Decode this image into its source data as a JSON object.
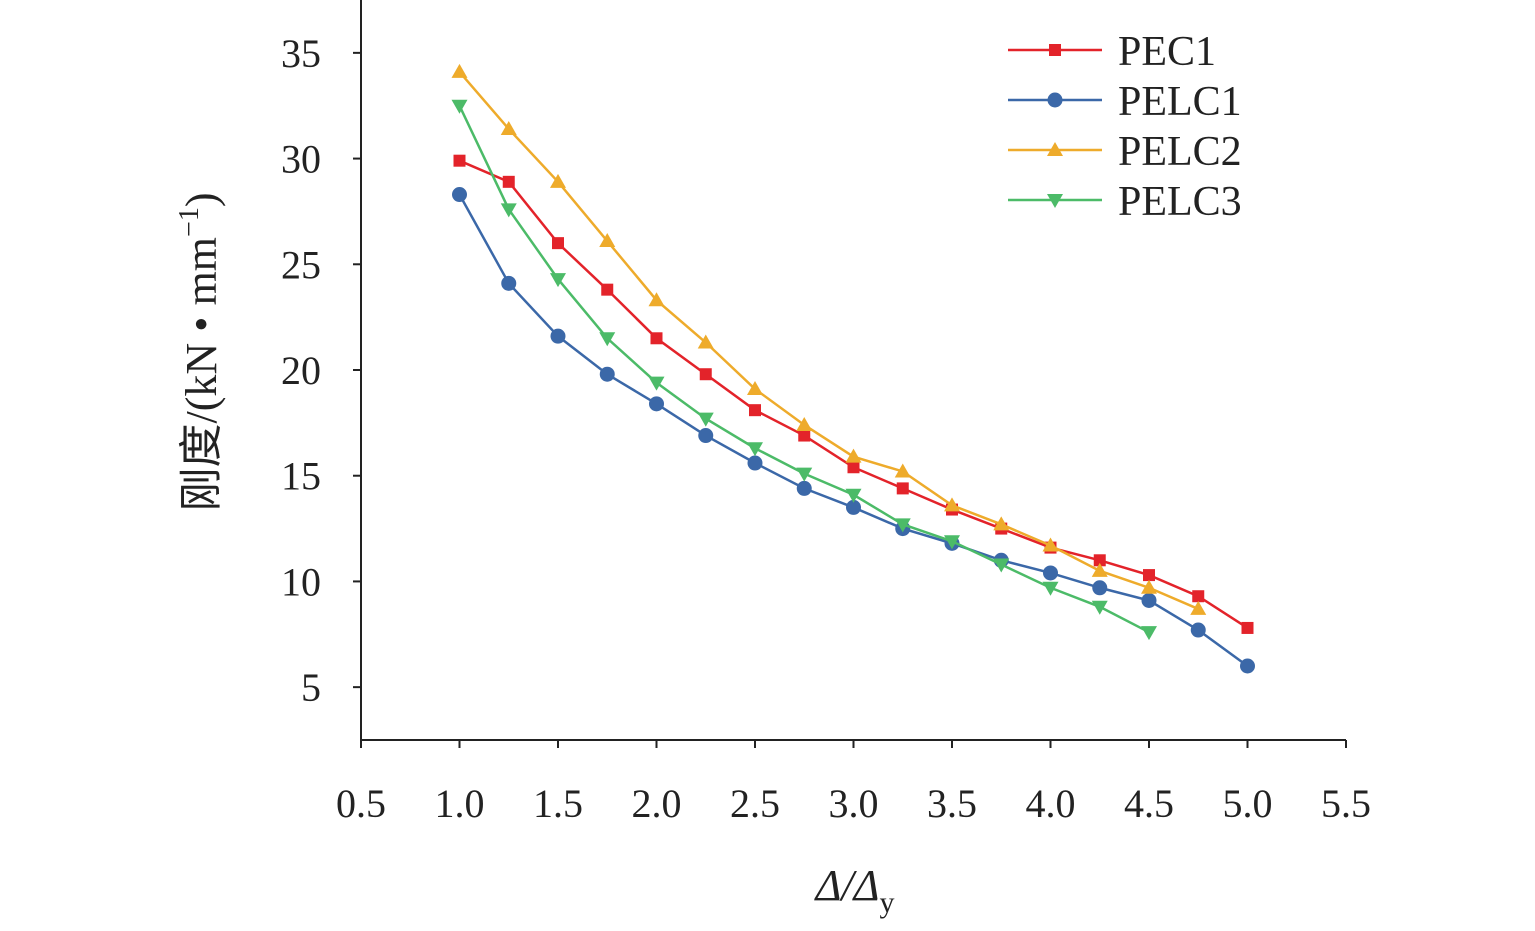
{
  "chart_data": {
    "type": "line",
    "title": "",
    "xlabel": {
      "main": "Δ/Δ",
      "sub": "y"
    },
    "ylabel": {
      "main": "刚度/(kN • mm",
      "sup": "−1",
      "end": ")"
    },
    "xlim": [
      0.5,
      5.5
    ],
    "ylim": [
      2.5,
      37.5
    ],
    "xticks": [
      "0.5",
      "1.0",
      "1.5",
      "2.0",
      "2.5",
      "3.0",
      "3.5",
      "4.0",
      "4.5",
      "5.0",
      "5.5"
    ],
    "yticks": [
      "5",
      "10",
      "15",
      "20",
      "25",
      "30",
      "35"
    ],
    "grid": false,
    "legend_position": "top-right",
    "series": [
      {
        "name": "PEC1",
        "color": "#e3232a",
        "marker": "square",
        "x": [
          1.0,
          1.25,
          1.5,
          1.75,
          2.0,
          2.25,
          2.5,
          2.75,
          3.0,
          3.25,
          3.5,
          3.75,
          4.0,
          4.25,
          4.5,
          4.75,
          5.0
        ],
        "y": [
          29.9,
          28.9,
          26.0,
          23.8,
          21.5,
          19.8,
          18.1,
          16.9,
          15.4,
          14.4,
          13.4,
          12.5,
          11.6,
          11.0,
          10.3,
          9.3,
          7.8
        ]
      },
      {
        "name": "PELC1",
        "color": "#3b68a8",
        "marker": "circle",
        "x": [
          1.0,
          1.25,
          1.5,
          1.75,
          2.0,
          2.25,
          2.5,
          2.75,
          3.0,
          3.25,
          3.5,
          3.75,
          4.0,
          4.25,
          4.5,
          4.75,
          5.0
        ],
        "y": [
          28.3,
          24.1,
          21.6,
          19.8,
          18.4,
          16.9,
          15.6,
          14.4,
          13.5,
          12.5,
          11.8,
          11.0,
          10.4,
          9.7,
          9.1,
          7.7,
          6.0
        ]
      },
      {
        "name": "PELC2",
        "color": "#eeab2b",
        "marker": "triangle-up",
        "x": [
          1.0,
          1.25,
          1.5,
          1.75,
          2.0,
          2.25,
          2.5,
          2.75,
          3.0,
          3.25,
          3.5,
          3.75,
          4.0,
          4.25,
          4.5,
          4.75
        ],
        "y": [
          34.1,
          31.4,
          28.9,
          26.1,
          23.3,
          21.3,
          19.1,
          17.4,
          15.9,
          15.2,
          13.6,
          12.7,
          11.7,
          10.5,
          9.7,
          8.7
        ]
      },
      {
        "name": "PELC3",
        "color": "#4cbb68",
        "marker": "triangle-down",
        "x": [
          1.0,
          1.25,
          1.5,
          1.75,
          2.0,
          2.25,
          2.5,
          2.75,
          3.0,
          3.25,
          3.5,
          3.75,
          4.0,
          4.25,
          4.5
        ],
        "y": [
          32.5,
          27.6,
          24.3,
          21.5,
          19.4,
          17.7,
          16.3,
          15.1,
          14.1,
          12.7,
          11.9,
          10.8,
          9.7,
          8.8,
          7.6
        ]
      }
    ]
  }
}
